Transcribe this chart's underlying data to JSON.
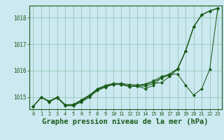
{
  "background_color": "#cce8f0",
  "plot_bg_color": "#cce8f0",
  "grid_color": "#99ccbb",
  "line_color": "#1a5c1a",
  "marker_color": "#1a5c1a",
  "xlabel": "Graphe pression niveau de la mer (hPa)",
  "xlabel_fontsize": 7.5,
  "ylabel_ticks": [
    1015,
    1016,
    1017,
    1018
  ],
  "xlim": [
    -0.5,
    23.5
  ],
  "ylim": [
    1014.55,
    1018.45
  ],
  "series": [
    [
      1014.65,
      1015.0,
      1014.85,
      1015.0,
      1014.7,
      1014.7,
      1014.85,
      1015.05,
      1015.3,
      1015.4,
      1015.5,
      1015.48,
      1015.4,
      1015.42,
      1015.32,
      1015.45,
      1015.75,
      1015.82,
      1016.05,
      1016.75,
      1017.65,
      1018.1,
      1018.25,
      1018.35
    ],
    [
      1014.65,
      1015.0,
      1014.85,
      1015.0,
      1014.7,
      1014.72,
      1014.88,
      1015.05,
      1015.28,
      1015.42,
      1015.48,
      1015.5,
      1015.42,
      1015.43,
      1015.47,
      1015.58,
      1015.72,
      1015.85,
      1015.88,
      1015.45,
      1015.08,
      1015.32,
      1016.05,
      1018.35
    ],
    [
      1014.65,
      1015.0,
      1014.85,
      1015.0,
      1014.72,
      1014.73,
      1014.9,
      1015.08,
      1015.32,
      1015.45,
      1015.52,
      1015.52,
      1015.48,
      1015.46,
      1015.5,
      1015.62,
      1015.78,
      1015.88,
      1016.08,
      1016.75,
      1017.65,
      1018.1,
      1018.25,
      1018.35
    ],
    [
      1014.65,
      1015.0,
      1014.82,
      1014.98,
      1014.68,
      1014.68,
      1014.82,
      1015.0,
      1015.25,
      1015.38,
      1015.48,
      1015.48,
      1015.4,
      1015.42,
      1015.42,
      1015.52,
      1015.55,
      1015.78,
      1016.08,
      1016.75,
      1017.65,
      1018.1,
      1018.25,
      1018.35
    ]
  ],
  "xtick_labels": [
    "0",
    "1",
    "2",
    "3",
    "4",
    "5",
    "6",
    "7",
    "8",
    "9",
    "10",
    "11",
    "12",
    "13",
    "14",
    "15",
    "16",
    "17",
    "18",
    "19",
    "20",
    "21",
    "22",
    "23"
  ]
}
